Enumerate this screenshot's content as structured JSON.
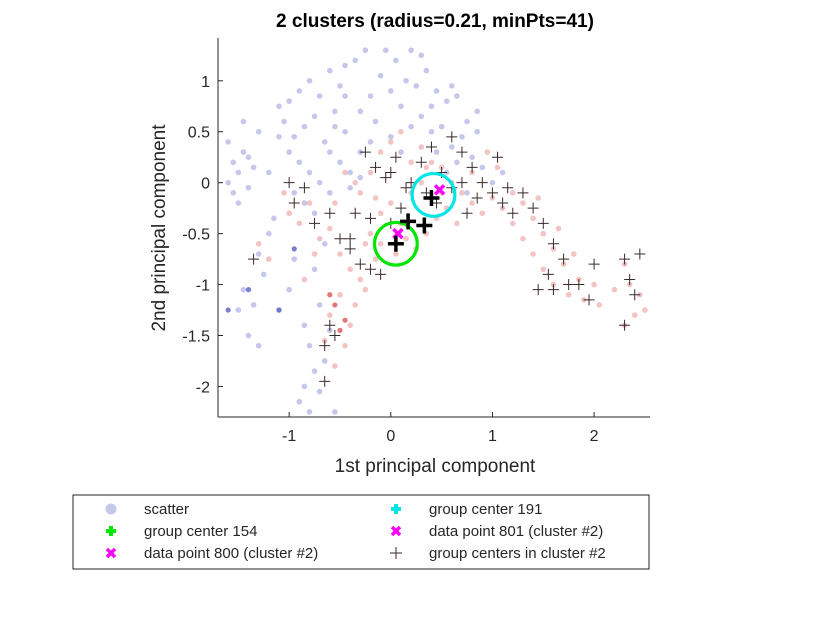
{
  "chart_data": {
    "type": "scatter",
    "title": "2 clusters (radius=0.21, minPts=41)",
    "xlabel": "1st principal component",
    "ylabel": "2nd principal component",
    "xlim": [
      -1.7,
      2.55
    ],
    "ylim": [
      -2.3,
      1.42
    ],
    "xticks": [
      -1,
      0,
      1,
      2
    ],
    "yticks": [
      1,
      0.5,
      0,
      -0.5,
      -1,
      -1.5,
      -2
    ],
    "grid": false,
    "legend_position": "bottom",
    "colors": {
      "cluster1": "#7f86d2",
      "cluster2": "#e88a8a",
      "outlier": "#6a70cc",
      "center154": "#00e600",
      "center191": "#00e6e6",
      "datapoint": "#ff00ff",
      "cross": "#000000"
    },
    "cluster1_points": [
      [
        -1.6,
        0.4
      ],
      [
        -1.55,
        0.2
      ],
      [
        -1.5,
        0.1
      ],
      [
        -1.45,
        0.3
      ],
      [
        -1.4,
        -0.05
      ],
      [
        -1.5,
        -0.2
      ],
      [
        -1.35,
        0.15
      ],
      [
        -1.6,
        0.0
      ],
      [
        -1.3,
        0.5
      ],
      [
        -1.45,
        0.6
      ],
      [
        -1.55,
        -0.1
      ],
      [
        -1.4,
        0.25
      ],
      [
        -1.2,
        0.1
      ],
      [
        -1.1,
        0.75
      ],
      [
        -1.0,
        0.8
      ],
      [
        -0.9,
        0.9
      ],
      [
        -0.8,
        1.0
      ],
      [
        -0.7,
        0.85
      ],
      [
        -0.6,
        1.1
      ],
      [
        -0.5,
        0.95
      ],
      [
        -1.05,
        0.6
      ],
      [
        -0.95,
        0.45
      ],
      [
        -0.85,
        0.55
      ],
      [
        -0.75,
        0.65
      ],
      [
        -0.65,
        0.4
      ],
      [
        -0.55,
        0.7
      ],
      [
        -0.45,
        0.5
      ],
      [
        -1.0,
        0.3
      ],
      [
        -0.9,
        0.2
      ],
      [
        -0.8,
        0.1
      ],
      [
        -0.7,
        0.0
      ],
      [
        -0.6,
        -0.1
      ],
      [
        -0.85,
        -0.2
      ],
      [
        -0.75,
        -0.3
      ],
      [
        -0.95,
        -0.1
      ],
      [
        -0.05,
        1.3
      ],
      [
        0.05,
        1.2
      ],
      [
        0.15,
        1.0
      ],
      [
        0.25,
        0.95
      ],
      [
        0.35,
        1.1
      ],
      [
        0.45,
        0.9
      ],
      [
        0.55,
        0.8
      ],
      [
        0.65,
        0.85
      ],
      [
        0.75,
        0.6
      ],
      [
        0.85,
        0.7
      ],
      [
        0.0,
        0.9
      ],
      [
        -0.1,
        1.05
      ],
      [
        -0.2,
        0.85
      ],
      [
        -0.3,
        0.7
      ],
      [
        -0.15,
        0.6
      ],
      [
        0.1,
        0.75
      ],
      [
        0.2,
        0.55
      ],
      [
        0.3,
        0.65
      ],
      [
        0.4,
        0.5
      ],
      [
        0.5,
        0.55
      ],
      [
        0.6,
        0.35
      ],
      [
        0.7,
        0.45
      ],
      [
        0.8,
        0.25
      ],
      [
        0.9,
        0.15
      ],
      [
        1.0,
        0.0
      ],
      [
        -0.35,
        1.2
      ],
      [
        -0.25,
        1.3
      ],
      [
        -0.45,
        1.15
      ],
      [
        0.2,
        1.3
      ],
      [
        0.3,
        1.25
      ],
      [
        -0.6,
        0.3
      ],
      [
        -0.5,
        0.2
      ],
      [
        -0.4,
        0.1
      ],
      [
        -0.3,
        0.3
      ],
      [
        -0.2,
        0.4
      ],
      [
        -1.2,
        -0.5
      ],
      [
        -1.3,
        -0.7
      ],
      [
        -1.25,
        -0.9
      ],
      [
        -1.35,
        -1.2
      ],
      [
        -1.4,
        -1.5
      ],
      [
        -1.3,
        -1.6
      ],
      [
        -1.5,
        -1.25
      ],
      [
        -1.45,
        -1.05
      ],
      [
        -1.1,
        -1.25
      ],
      [
        -0.85,
        -1.4
      ],
      [
        -0.8,
        -1.6
      ],
      [
        -0.75,
        -1.85
      ],
      [
        -0.85,
        -2.0
      ],
      [
        -0.9,
        -2.15
      ],
      [
        -0.7,
        -2.05
      ],
      [
        -0.65,
        -1.75
      ],
      [
        -0.6,
        -1.45
      ],
      [
        -0.7,
        -1.2
      ],
      [
        -0.75,
        -0.85
      ],
      [
        -0.65,
        -0.6
      ],
      [
        -1.15,
        -0.35
      ],
      [
        -0.95,
        -0.75
      ],
      [
        -1.0,
        -1.05
      ],
      [
        -0.55,
        -2.25
      ],
      [
        -0.8,
        -2.25
      ],
      [
        -1.1,
        0.45
      ],
      [
        -0.3,
        0.05
      ],
      [
        -0.4,
        -0.05
      ],
      [
        0.0,
        0.45
      ],
      [
        0.1,
        0.3
      ],
      [
        0.45,
        0.3
      ],
      [
        0.55,
        0.1
      ],
      [
        0.65,
        0.2
      ],
      [
        0.75,
        -0.1
      ],
      [
        -0.55,
        0.55
      ],
      [
        -0.45,
        0.85
      ],
      [
        0.4,
        0.75
      ],
      [
        0.6,
        0.95
      ],
      [
        0.85,
        0.5
      ],
      [
        1.1,
        0.1
      ]
    ],
    "cluster1_outliers": [
      [
        -1.6,
        -1.25
      ],
      [
        -1.4,
        -1.05
      ],
      [
        -1.1,
        -1.25
      ],
      [
        -0.95,
        -0.65
      ]
    ],
    "cluster2_points": [
      [
        -1.3,
        -0.6
      ],
      [
        -1.2,
        -0.75
      ],
      [
        -1.0,
        -0.3
      ],
      [
        -0.9,
        -0.4
      ],
      [
        -0.8,
        -0.2
      ],
      [
        -1.05,
        -0.1
      ],
      [
        -0.7,
        -0.55
      ],
      [
        -0.6,
        -0.45
      ],
      [
        -0.5,
        -0.7
      ],
      [
        -0.4,
        -0.85
      ],
      [
        -0.3,
        -0.95
      ],
      [
        -0.5,
        -1.1
      ],
      [
        -0.6,
        -1.3
      ],
      [
        -0.65,
        -1.55
      ],
      [
        -0.55,
        -1.8
      ],
      [
        -0.45,
        -1.6
      ],
      [
        -0.35,
        -1.2
      ],
      [
        -0.25,
        -1.05
      ],
      [
        -0.4,
        -1.4
      ],
      [
        -0.2,
        -0.5
      ],
      [
        -0.1,
        -0.3
      ],
      [
        0.0,
        -0.2
      ],
      [
        0.1,
        -0.4
      ],
      [
        0.2,
        -0.1
      ],
      [
        0.3,
        0.0
      ],
      [
        -0.2,
        0.1
      ],
      [
        -0.3,
        -0.1
      ],
      [
        -0.1,
        0.3
      ],
      [
        0.0,
        0.4
      ],
      [
        0.1,
        0.5
      ],
      [
        0.2,
        0.2
      ],
      [
        0.3,
        0.35
      ],
      [
        0.4,
        0.2
      ],
      [
        0.5,
        0.15
      ],
      [
        0.6,
        0.0
      ],
      [
        0.7,
        -0.1
      ],
      [
        0.8,
        -0.2
      ],
      [
        0.9,
        -0.3
      ],
      [
        1.0,
        -0.15
      ],
      [
        1.1,
        -0.25
      ],
      [
        1.2,
        -0.4
      ],
      [
        1.3,
        -0.2
      ],
      [
        1.4,
        -0.35
      ],
      [
        1.5,
        -0.5
      ],
      [
        1.6,
        -0.65
      ],
      [
        1.7,
        -0.8
      ],
      [
        1.5,
        -0.85
      ],
      [
        1.4,
        -0.7
      ],
      [
        1.3,
        -0.55
      ],
      [
        1.6,
        -1.0
      ],
      [
        1.75,
        -1.1
      ],
      [
        1.85,
        -0.95
      ],
      [
        1.9,
        -1.15
      ],
      [
        2.0,
        -1.0
      ],
      [
        2.05,
        -1.2
      ],
      [
        2.3,
        -0.8
      ],
      [
        2.35,
        -1.0
      ],
      [
        2.45,
        -1.1
      ],
      [
        2.4,
        -1.3
      ],
      [
        2.3,
        -1.4
      ],
      [
        -0.1,
        -0.6
      ],
      [
        0.05,
        -0.7
      ],
      [
        0.15,
        -0.55
      ],
      [
        0.25,
        -0.65
      ],
      [
        0.35,
        -0.5
      ],
      [
        0.45,
        -0.35
      ],
      [
        0.55,
        -0.25
      ],
      [
        0.65,
        -0.4
      ],
      [
        -0.15,
        -0.75
      ],
      [
        -0.25,
        -0.6
      ],
      [
        0.95,
        0.3
      ],
      [
        1.05,
        0.15
      ],
      [
        0.8,
        0.1
      ],
      [
        1.2,
        -0.1
      ],
      [
        -0.45,
        0.1
      ],
      [
        -0.55,
        -0.2
      ],
      [
        -0.35,
        0.0
      ],
      [
        -0.15,
        -0.15
      ],
      [
        1.45,
        -0.15
      ],
      [
        1.65,
        -0.45
      ],
      [
        1.8,
        -0.7
      ],
      [
        2.2,
        -1.05
      ],
      [
        2.5,
        -1.25
      ],
      [
        0.35,
        0.15
      ],
      [
        0.5,
        -0.1
      ],
      [
        -0.75,
        -0.7
      ],
      [
        -0.85,
        -0.95
      ]
    ],
    "cluster2_solid": [
      [
        -0.6,
        -1.1
      ],
      [
        -0.5,
        -1.45
      ],
      [
        -0.45,
        -1.35
      ],
      [
        -0.55,
        -1.2
      ]
    ],
    "center_crosses": [
      [
        -1.0,
        0.0
      ],
      [
        -0.85,
        -0.05
      ],
      [
        -0.6,
        -0.3
      ],
      [
        -0.5,
        -0.55
      ],
      [
        -0.4,
        -0.65
      ],
      [
        -0.3,
        -0.8
      ],
      [
        -0.2,
        -0.85
      ],
      [
        -0.1,
        -0.9
      ],
      [
        0.0,
        -0.4
      ],
      [
        0.1,
        -0.25
      ],
      [
        0.2,
        0.0
      ],
      [
        0.3,
        0.2
      ],
      [
        0.4,
        0.35
      ],
      [
        0.5,
        0.1
      ],
      [
        0.6,
        0.45
      ],
      [
        0.7,
        0.3
      ],
      [
        0.8,
        0.15
      ],
      [
        0.9,
        0.0
      ],
      [
        1.0,
        -0.1
      ],
      [
        1.1,
        -0.2
      ],
      [
        1.2,
        -0.3
      ],
      [
        1.3,
        -0.1
      ],
      [
        1.4,
        -0.25
      ],
      [
        1.5,
        -0.4
      ],
      [
        1.6,
        -0.6
      ],
      [
        1.7,
        -0.75
      ],
      [
        1.55,
        -0.9
      ],
      [
        1.75,
        -1.0
      ],
      [
        1.85,
        -1.0
      ],
      [
        1.95,
        -1.15
      ],
      [
        2.0,
        -0.8
      ],
      [
        2.3,
        -0.75
      ],
      [
        2.45,
        -0.7
      ],
      [
        2.35,
        -0.95
      ],
      [
        2.4,
        -1.1
      ],
      [
        2.3,
        -1.4
      ],
      [
        1.45,
        -1.05
      ],
      [
        1.6,
        -1.05
      ],
      [
        -0.6,
        -1.4
      ],
      [
        -0.65,
        -1.6
      ],
      [
        -0.65,
        -1.95
      ],
      [
        -0.55,
        -1.5
      ],
      [
        -0.25,
        0.3
      ],
      [
        -0.15,
        0.15
      ],
      [
        -0.05,
        0.05
      ],
      [
        0.05,
        0.25
      ],
      [
        0.15,
        -0.05
      ],
      [
        0.35,
        -0.1
      ],
      [
        0.45,
        -0.2
      ],
      [
        -0.95,
        -0.2
      ],
      [
        -0.75,
        -0.4
      ],
      [
        -1.35,
        -0.75
      ],
      [
        1.05,
        0.25
      ],
      [
        1.15,
        -0.05
      ],
      [
        -0.35,
        -0.3
      ],
      [
        -0.2,
        -0.35
      ],
      [
        0.0,
        0.1
      ],
      [
        0.6,
        -0.05
      ],
      [
        0.7,
        0.0
      ],
      [
        0.75,
        -0.3
      ],
      [
        0.85,
        -0.15
      ],
      [
        -0.4,
        -0.55
      ]
    ],
    "group_center_154": {
      "x": 0.05,
      "y": -0.6
    },
    "group_center_191": {
      "x": 0.4,
      "y": -0.15
    },
    "data_point_800": {
      "x": 0.07,
      "y": -0.5
    },
    "data_point_801": {
      "x": 0.48,
      "y": -0.07
    },
    "big_crosses": [
      [
        0.05,
        -0.6
      ],
      [
        0.4,
        -0.15
      ],
      [
        0.17,
        -0.38
      ],
      [
        0.33,
        -0.42
      ]
    ],
    "circles": [
      {
        "x": 0.05,
        "y": -0.6,
        "r": 0.21,
        "color": "center154"
      },
      {
        "x": 0.42,
        "y": -0.12,
        "r": 0.21,
        "color": "center191"
      }
    ],
    "legend": [
      {
        "label": "scatter",
        "marker": "dot",
        "color": "cluster1"
      },
      {
        "label": "group center 191",
        "marker": "plus",
        "color": "center191"
      },
      {
        "label": "group center 154",
        "marker": "plus",
        "color": "center154"
      },
      {
        "label": "data point 801 (cluster #2)",
        "marker": "x",
        "color": "datapoint"
      },
      {
        "label": "data point 800 (cluster #2)",
        "marker": "x",
        "color": "datapoint"
      },
      {
        "label": "group centers in cluster #2",
        "marker": "thinplus",
        "color": "cross"
      }
    ]
  }
}
